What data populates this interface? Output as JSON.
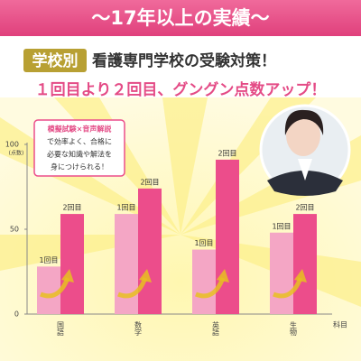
{
  "chart_data": {
    "type": "bar",
    "title": "〜17年以上の実績〜",
    "badge": "学校別",
    "subtitle": "看護専門学校の受験対策！",
    "headline": "１回目より２回目、グングン点数アップ！",
    "callout": {
      "heading": "模擬試験×音声解説",
      "lines": [
        "で効率よく、合格に",
        "必要な知識や解法を",
        "身につけられる！"
      ]
    },
    "y_unit": "(点数)",
    "x_label": "科目",
    "categories": [
      "国語",
      "数学",
      "英語",
      "生物"
    ],
    "series": [
      {
        "name": "1回目",
        "color": "#f4a6c5",
        "values": [
          28,
          59,
          38,
          48
        ]
      },
      {
        "name": "2回目",
        "color": "#ec4d8b",
        "values": [
          59,
          74,
          91,
          59
        ]
      }
    ],
    "ylim": [
      0,
      100
    ],
    "yticks": [
      0,
      50,
      100
    ]
  }
}
